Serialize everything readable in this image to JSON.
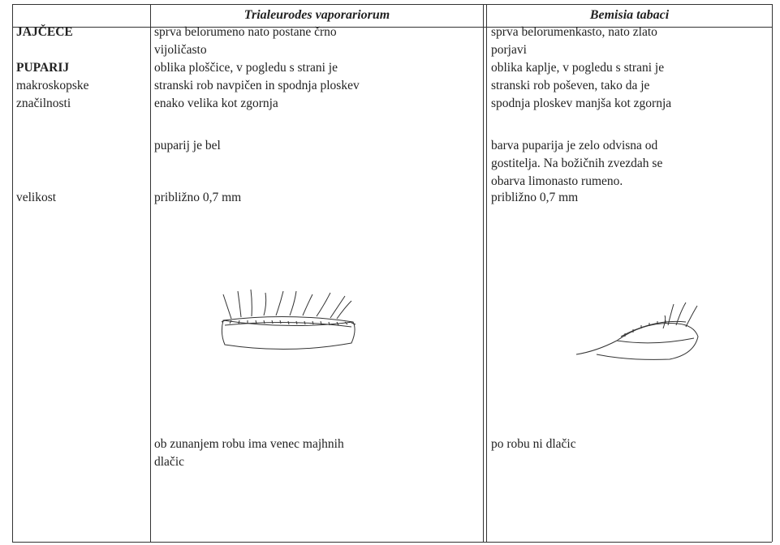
{
  "table": {
    "header": [
      "Trialeurodes vaporariorum",
      "Bemisia tabaci"
    ],
    "rows": [
      {
        "label": [
          "JAJČECE"
        ],
        "trialeurodes": [
          "sprva belorumeno nato postane črno",
          "vijoličasto"
        ],
        "bemisia": [
          "sprva belorumenkasto, nato zlato",
          "porjavi"
        ]
      },
      {
        "label": [
          "PUPARIJ",
          "makroskopske",
          "značilnosti"
        ],
        "trialeurodes": [
          "oblika ploščice, v pogledu s strani je",
          "stranski rob navpičen in spodnja ploskev",
          "enako velika kot zgornja"
        ],
        "bemisia": [
          "oblika kaplje, v pogledu s strani je",
          "stranski rob poševen, tako da je",
          "spodnja ploskev manjša kot zgornja"
        ]
      },
      {
        "trialeurodes": [
          "puparij je bel"
        ],
        "bemisia": [
          "barva puparija je zelo odvisna od",
          "gostitelja. Na božičnih zvezdah  se",
          "obarva limonasto rumeno."
        ]
      },
      {
        "label": [
          "velikost"
        ],
        "trialeurodes": [
          "približno 0,7 mm"
        ],
        "bemisia": [
          "približno 0,7 mm"
        ]
      },
      {
        "trialeurodes": [
          "ob zunanjem robu ima venec majhnih",
          "dlačic"
        ],
        "bemisia": [
          "po robu ni dlačic"
        ]
      }
    ]
  }
}
